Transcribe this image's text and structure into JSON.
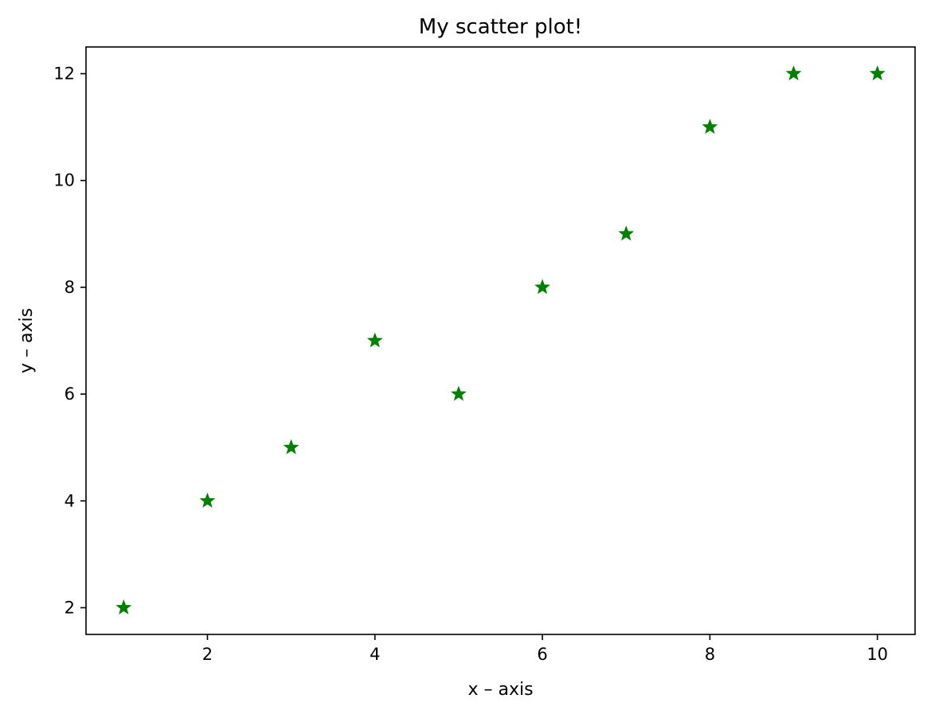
{
  "chart_data": {
    "type": "scatter",
    "title": "My scatter plot!",
    "xlabel": "x – axis",
    "ylabel": "y – axis",
    "xlim": [
      0.55,
      10.45
    ],
    "ylim": [
      1.5,
      12.5
    ],
    "xticks": [
      2,
      4,
      6,
      8,
      10
    ],
    "yticks": [
      2,
      4,
      6,
      8,
      10,
      12
    ],
    "grid": false,
    "legend": "none",
    "marker": "star",
    "marker_color": "#008000",
    "series": [
      {
        "x": [
          1,
          2,
          3,
          4,
          5,
          6,
          7,
          8,
          9,
          10
        ],
        "y": [
          2,
          4,
          5,
          7,
          6,
          8,
          9,
          11,
          12,
          12
        ]
      }
    ]
  }
}
